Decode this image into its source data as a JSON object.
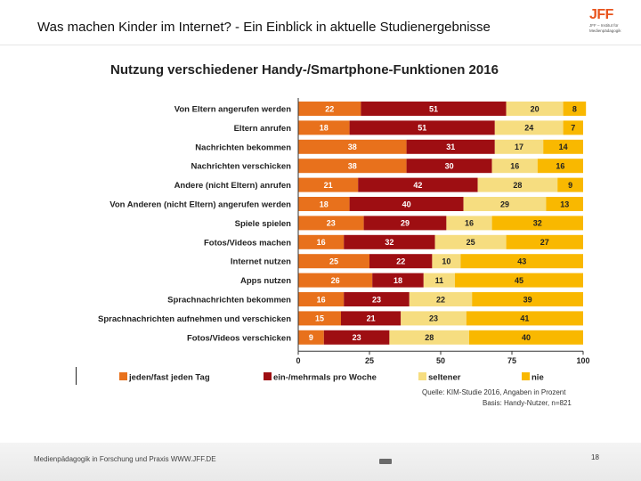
{
  "slide": {
    "title_main": "Was machen Kinder im Internet?",
    "title_rest": " - Ein Einblick in aktuelle Studienergebnisse",
    "footer": "Medienpädagogik in Forschung und Praxis WWW.JFF.DE",
    "page_number": "18",
    "logo": {
      "mark": "JFF",
      "line1": "JFF – Institut für",
      "line2": "Medienpädagogik"
    }
  },
  "chart_data": {
    "type": "bar",
    "orientation": "horizontal-stacked",
    "title": "Nutzung verschiedener Handy-/Smartphone-Funktionen 2016",
    "categories": [
      "Von Eltern angerufen werden",
      "Eltern anrufen",
      "Nachrichten bekommen",
      "Nachrichten verschicken",
      "Andere (nicht Eltern) anrufen",
      "Von Anderen (nicht Eltern) angerufen werden",
      "Spiele spielen",
      "Fotos/Videos machen",
      "Internet nutzen",
      "Apps nutzen",
      "Sprachnachrichten bekommen",
      "Sprachnachrichten aufnehmen und verschicken",
      "Fotos/Videos verschicken"
    ],
    "series": [
      {
        "name": "jeden/fast jeden Tag",
        "color": "#e8711c",
        "label_color": "#ffffff",
        "values": [
          22,
          18,
          38,
          38,
          21,
          18,
          23,
          16,
          25,
          26,
          16,
          15,
          9
        ]
      },
      {
        "name": "ein-/mehrmals pro Woche",
        "color": "#9e0e12",
        "label_color": "#ffffff",
        "values": [
          51,
          51,
          31,
          30,
          42,
          40,
          29,
          32,
          22,
          18,
          23,
          21,
          23
        ]
      },
      {
        "name": "seltener",
        "color": "#f6dd80",
        "label_color": "#222222",
        "values": [
          20,
          24,
          17,
          16,
          28,
          29,
          16,
          25,
          10,
          11,
          22,
          23,
          28
        ]
      },
      {
        "name": "nie",
        "color": "#f9b800",
        "label_color": "#222222",
        "values": [
          8,
          7,
          14,
          16,
          9,
          13,
          32,
          27,
          43,
          45,
          39,
          41,
          40
        ]
      }
    ],
    "xlim": [
      0,
      100
    ],
    "xticks": [
      0,
      25,
      50,
      75,
      100
    ],
    "legend_position": "bottom",
    "source": "Quelle: KIM-Studie 2016, Angaben in Prozent",
    "basis": "Basis: Handy-Nutzer, n=821"
  }
}
